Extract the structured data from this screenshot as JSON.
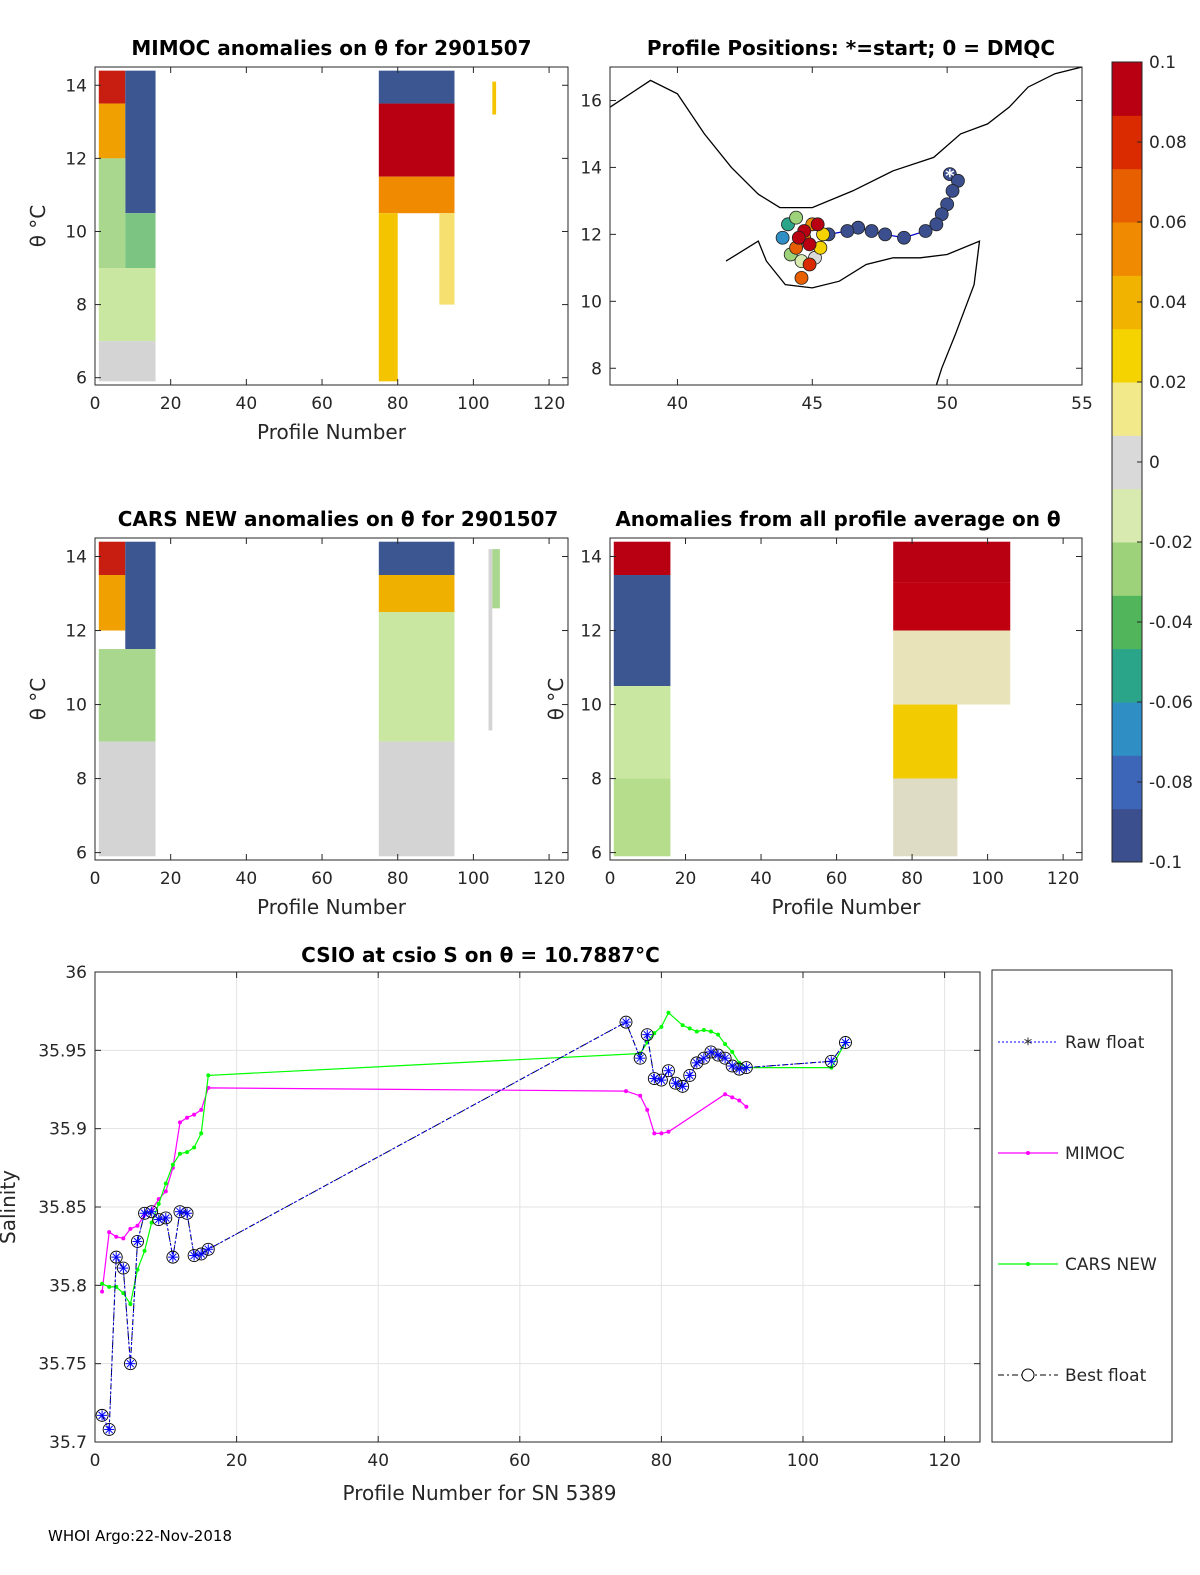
{
  "footer": "WHOI Argo:22-Nov-2018",
  "colorbar": {
    "ticks": [
      "0.1",
      "0.08",
      "0.06",
      "0.04",
      "0.02",
      "0",
      "-0.02",
      "-0.04",
      "-0.06",
      "-0.08",
      "-0.1"
    ],
    "colors": [
      "#3b4f8f",
      "#3d65b8",
      "#2f8ec4",
      "#2aa58a",
      "#51b55b",
      "#9dd27a",
      "#d8eab0",
      "#d9d9d9",
      "#f1e98a",
      "#f5d300",
      "#f2b200",
      "#f08a00",
      "#e85f00",
      "#d92a00",
      "#b80012"
    ]
  },
  "chart_data": [
    {
      "id": "mimoc_anom",
      "type": "heatmap",
      "title": "MIMOC anomalies on θ  for 2901507",
      "xlabel": "Profile Number",
      "ylabel": "θ °C",
      "xlim": [
        0,
        125
      ],
      "ylim": [
        5.8,
        14.5
      ],
      "xticks": [
        "0",
        "20",
        "40",
        "60",
        "80",
        "100",
        "120"
      ],
      "yticks": [
        "6",
        "8",
        "10",
        "12",
        "14"
      ],
      "blocks": [
        {
          "x0": 1,
          "x1": 8,
          "y0": 13.5,
          "y1": 14.4,
          "color": "#c81e12"
        },
        {
          "x0": 1,
          "x1": 8,
          "y0": 12,
          "y1": 13.5,
          "color": "#f0a000"
        },
        {
          "x0": 8,
          "x1": 16,
          "y0": 10.5,
          "y1": 14.4,
          "color": "#3b5691"
        },
        {
          "x0": 1,
          "x1": 8,
          "y0": 9,
          "y1": 12,
          "color": "#a9d78e"
        },
        {
          "x0": 8,
          "x1": 16,
          "y0": 9,
          "y1": 10.5,
          "color": "#7cc481"
        },
        {
          "x0": 1,
          "x1": 16,
          "y0": 7,
          "y1": 9,
          "color": "#c9e7a0"
        },
        {
          "x0": 1,
          "x1": 16,
          "y0": 5.9,
          "y1": 7,
          "color": "#d4d4d4"
        },
        {
          "x0": 75,
          "x1": 95,
          "y0": 13.5,
          "y1": 14.4,
          "color": "#3b5691"
        },
        {
          "x0": 75,
          "x1": 95,
          "y0": 11.5,
          "y1": 13.5,
          "color": "#b80012"
        },
        {
          "x0": 75,
          "x1": 95,
          "y0": 10.5,
          "y1": 11.5,
          "color": "#f08a00"
        },
        {
          "x0": 75,
          "x1": 80,
          "y0": 5.9,
          "y1": 10.5,
          "color": "#f5c400"
        },
        {
          "x0": 91,
          "x1": 95,
          "y0": 8,
          "y1": 10.5,
          "color": "#f5e070"
        },
        {
          "x0": 105,
          "x1": 106,
          "y0": 13.2,
          "y1": 14.1,
          "color": "#f5c400"
        }
      ]
    },
    {
      "id": "positions",
      "type": "scatter",
      "title": "Profile Positions: *=start; 0 = DMQC",
      "xlim": [
        37.5,
        55
      ],
      "ylim": [
        7.5,
        17
      ],
      "xticks": [
        "40",
        "45",
        "50",
        "55"
      ],
      "yticks": [
        "8",
        "10",
        "12",
        "14",
        "16"
      ],
      "track": [
        {
          "lon": 50.1,
          "lat": 13.8,
          "v": -0.1
        },
        {
          "lon": 50.4,
          "lat": 13.6,
          "v": -0.1
        },
        {
          "lon": 50.2,
          "lat": 13.3,
          "v": -0.1
        },
        {
          "lon": 50.0,
          "lat": 12.9,
          "v": -0.1
        },
        {
          "lon": 49.8,
          "lat": 12.6,
          "v": -0.1
        },
        {
          "lon": 49.6,
          "lat": 12.3,
          "v": -0.1
        },
        {
          "lon": 49.2,
          "lat": 12.1,
          "v": -0.1
        },
        {
          "lon": 48.4,
          "lat": 11.9,
          "v": -0.1
        },
        {
          "lon": 47.7,
          "lat": 12.0,
          "v": -0.1
        },
        {
          "lon": 47.2,
          "lat": 12.1,
          "v": -0.1
        },
        {
          "lon": 46.7,
          "lat": 12.2,
          "v": -0.1
        },
        {
          "lon": 46.3,
          "lat": 12.1,
          "v": -0.1
        },
        {
          "lon": 45.6,
          "lat": 12.0,
          "v": -0.1
        },
        {
          "lon": 43.9,
          "lat": 11.9,
          "v": -0.07
        },
        {
          "lon": 44.1,
          "lat": 12.3,
          "v": -0.05
        },
        {
          "lon": 44.4,
          "lat": 12.5,
          "v": -0.03
        },
        {
          "lon": 44.2,
          "lat": 11.4,
          "v": -0.02
        },
        {
          "lon": 44.6,
          "lat": 11.2,
          "v": -0.01
        },
        {
          "lon": 45.1,
          "lat": 11.3,
          "v": 0.0
        },
        {
          "lon": 45.3,
          "lat": 11.6,
          "v": 0.02
        },
        {
          "lon": 45.4,
          "lat": 12.0,
          "v": 0.03
        },
        {
          "lon": 45.0,
          "lat": 12.3,
          "v": 0.05
        },
        {
          "lon": 44.7,
          "lat": 11.9,
          "v": 0.06
        },
        {
          "lon": 44.4,
          "lat": 11.6,
          "v": 0.07
        },
        {
          "lon": 44.9,
          "lat": 11.1,
          "v": 0.08
        },
        {
          "lon": 44.6,
          "lat": 10.7,
          "v": 0.07
        },
        {
          "lon": 45.2,
          "lat": 12.3,
          "v": 0.09
        },
        {
          "lon": 44.7,
          "lat": 12.1,
          "v": 0.1
        },
        {
          "lon": 44.9,
          "lat": 11.7,
          "v": 0.1
        },
        {
          "lon": 44.5,
          "lat": 11.9,
          "v": 0.1
        }
      ],
      "start": {
        "lon": 50.1,
        "lat": 13.75
      }
    },
    {
      "id": "cars_anom",
      "type": "heatmap",
      "title": "CARS NEW anomalies on θ for 2901507",
      "xlabel": "Profile Number",
      "ylabel": "θ °C",
      "xlim": [
        0,
        125
      ],
      "ylim": [
        5.8,
        14.5
      ],
      "xticks": [
        "0",
        "20",
        "40",
        "60",
        "80",
        "100",
        "120"
      ],
      "yticks": [
        "6",
        "8",
        "10",
        "12",
        "14"
      ],
      "blocks": [
        {
          "x0": 1,
          "x1": 8,
          "y0": 13.5,
          "y1": 14.4,
          "color": "#c81e12"
        },
        {
          "x0": 1,
          "x1": 8,
          "y0": 12,
          "y1": 13.5,
          "color": "#f0a000"
        },
        {
          "x0": 8,
          "x1": 16,
          "y0": 11.5,
          "y1": 14.4,
          "color": "#3b5691"
        },
        {
          "x0": 1,
          "x1": 16,
          "y0": 9,
          "y1": 11.5,
          "color": "#a9d78e"
        },
        {
          "x0": 1,
          "x1": 16,
          "y0": 5.9,
          "y1": 9,
          "color": "#d4d4d4"
        },
        {
          "x0": 75,
          "x1": 95,
          "y0": 13.5,
          "y1": 14.4,
          "color": "#3b5691"
        },
        {
          "x0": 75,
          "x1": 95,
          "y0": 12.5,
          "y1": 13.5,
          "color": "#f0b000"
        },
        {
          "x0": 75,
          "x1": 95,
          "y0": 9,
          "y1": 12.5,
          "color": "#c9e7a0"
        },
        {
          "x0": 75,
          "x1": 95,
          "y0": 5.9,
          "y1": 9,
          "color": "#d4d4d4"
        },
        {
          "x0": 104,
          "x1": 105,
          "y0": 9.3,
          "y1": 14.2,
          "color": "#d4d4d4"
        },
        {
          "x0": 105,
          "x1": 107,
          "y0": 12.6,
          "y1": 14.2,
          "color": "#a9d78e"
        }
      ]
    },
    {
      "id": "avg_anom",
      "type": "heatmap",
      "title": "Anomalies from all profile average on θ",
      "xlabel": "Profile Number",
      "ylabel": "θ °C",
      "xlim": [
        0,
        125
      ],
      "ylim": [
        5.8,
        14.5
      ],
      "xticks": [
        "0",
        "20",
        "40",
        "60",
        "80",
        "100",
        "120"
      ],
      "yticks": [
        "6",
        "8",
        "10",
        "12",
        "14"
      ],
      "blocks": [
        {
          "x0": 1,
          "x1": 16,
          "y0": 13.5,
          "y1": 14.4,
          "color": "#b80012"
        },
        {
          "x0": 1,
          "x1": 16,
          "y0": 10.5,
          "y1": 13.5,
          "color": "#3b5691"
        },
        {
          "x0": 1,
          "x1": 16,
          "y0": 8,
          "y1": 10.5,
          "color": "#c9e7a0"
        },
        {
          "x0": 1,
          "x1": 16,
          "y0": 5.9,
          "y1": 8,
          "color": "#b6dd8c"
        },
        {
          "x0": 75,
          "x1": 106,
          "y0": 13.3,
          "y1": 14.4,
          "color": "#b80012"
        },
        {
          "x0": 75,
          "x1": 106,
          "y0": 12,
          "y1": 13.3,
          "color": "#c00010"
        },
        {
          "x0": 75,
          "x1": 106,
          "y0": 10,
          "y1": 12,
          "color": "#e8e3b8"
        },
        {
          "x0": 75,
          "x1": 92,
          "y0": 8,
          "y1": 10,
          "color": "#f2cc00"
        },
        {
          "x0": 75,
          "x1": 92,
          "y0": 5.9,
          "y1": 8,
          "color": "#dedcc4"
        }
      ]
    },
    {
      "id": "csio_salinity",
      "type": "line",
      "title": "CSIO at csio S on θ = 10.7887°C",
      "xlabel": "Profile Number for SN 5389",
      "ylabel": "Salinity",
      "xlim": [
        0,
        125
      ],
      "ylim": [
        35.7,
        36
      ],
      "xticks": [
        "0",
        "20",
        "40",
        "60",
        "80",
        "100",
        "120"
      ],
      "yticks": [
        "35.7",
        "35.75",
        "35.8",
        "35.85",
        "35.9",
        "35.95",
        "36"
      ],
      "series": [
        {
          "name": "Raw float",
          "color": "#0000ff",
          "x": [
            1,
            2,
            3,
            4,
            5,
            6,
            7,
            8,
            9,
            10,
            11,
            12,
            13,
            14,
            15,
            16,
            75,
            77,
            78,
            79,
            80,
            81,
            82,
            83,
            84,
            85,
            86,
            87,
            88,
            89,
            90,
            91,
            92,
            104,
            106
          ],
          "y": [
            35.717,
            35.708,
            35.818,
            35.811,
            35.75,
            35.828,
            35.846,
            35.847,
            35.842,
            35.843,
            35.818,
            35.847,
            35.846,
            35.819,
            35.82,
            35.823,
            35.968,
            35.945,
            35.96,
            35.932,
            35.931,
            35.937,
            35.929,
            35.927,
            35.934,
            35.942,
            35.945,
            35.949,
            35.947,
            35.945,
            35.94,
            35.938,
            35.939,
            35.943,
            35.955
          ]
        },
        {
          "name": "MIMOC",
          "color": "#ff00ff",
          "x": [
            1,
            2,
            3,
            4,
            5,
            6,
            7,
            8,
            9,
            10,
            11,
            12,
            13,
            14,
            15,
            16,
            75,
            77,
            78,
            79,
            80,
            81,
            89,
            90,
            91,
            92
          ],
          "y": [
            35.796,
            35.834,
            35.831,
            35.83,
            35.836,
            35.838,
            35.845,
            35.848,
            35.855,
            35.86,
            35.875,
            35.904,
            35.907,
            35.909,
            35.912,
            35.926,
            35.924,
            35.921,
            35.912,
            35.897,
            35.897,
            35.898,
            35.922,
            35.92,
            35.918,
            35.914
          ]
        },
        {
          "name": "CARS NEW",
          "color": "#00ff00",
          "x": [
            1,
            2,
            3,
            4,
            5,
            6,
            7,
            8,
            9,
            10,
            11,
            12,
            13,
            14,
            15,
            16,
            77,
            78,
            79,
            80,
            81,
            83,
            84,
            85,
            86,
            87,
            88,
            89,
            90,
            91,
            92,
            104,
            106
          ],
          "y": [
            35.801,
            35.799,
            35.799,
            35.795,
            35.788,
            35.81,
            35.822,
            35.84,
            35.852,
            35.865,
            35.877,
            35.884,
            35.885,
            35.888,
            35.897,
            35.934,
            35.948,
            35.955,
            35.961,
            35.965,
            35.974,
            35.966,
            35.964,
            35.962,
            35.963,
            35.962,
            35.96,
            35.954,
            35.949,
            35.942,
            35.939,
            35.939,
            35.955
          ]
        },
        {
          "name": "Best float",
          "color": "#000000",
          "x": [
            1,
            2,
            3,
            4,
            5,
            6,
            7,
            8,
            9,
            10,
            11,
            12,
            13,
            14,
            15,
            16,
            75,
            77,
            78,
            79,
            80,
            81,
            82,
            83,
            84,
            85,
            86,
            87,
            88,
            89,
            90,
            91,
            92,
            104,
            106
          ],
          "y": [
            35.717,
            35.708,
            35.818,
            35.811,
            35.75,
            35.828,
            35.846,
            35.847,
            35.842,
            35.843,
            35.818,
            35.847,
            35.846,
            35.819,
            35.82,
            35.823,
            35.968,
            35.945,
            35.96,
            35.932,
            35.931,
            35.937,
            35.929,
            35.927,
            35.934,
            35.942,
            35.945,
            35.949,
            35.947,
            35.945,
            35.94,
            35.938,
            35.939,
            35.943,
            35.955
          ]
        }
      ],
      "legend": [
        "Raw float",
        "MIMOC",
        "CARS NEW",
        "Best float"
      ]
    }
  ]
}
